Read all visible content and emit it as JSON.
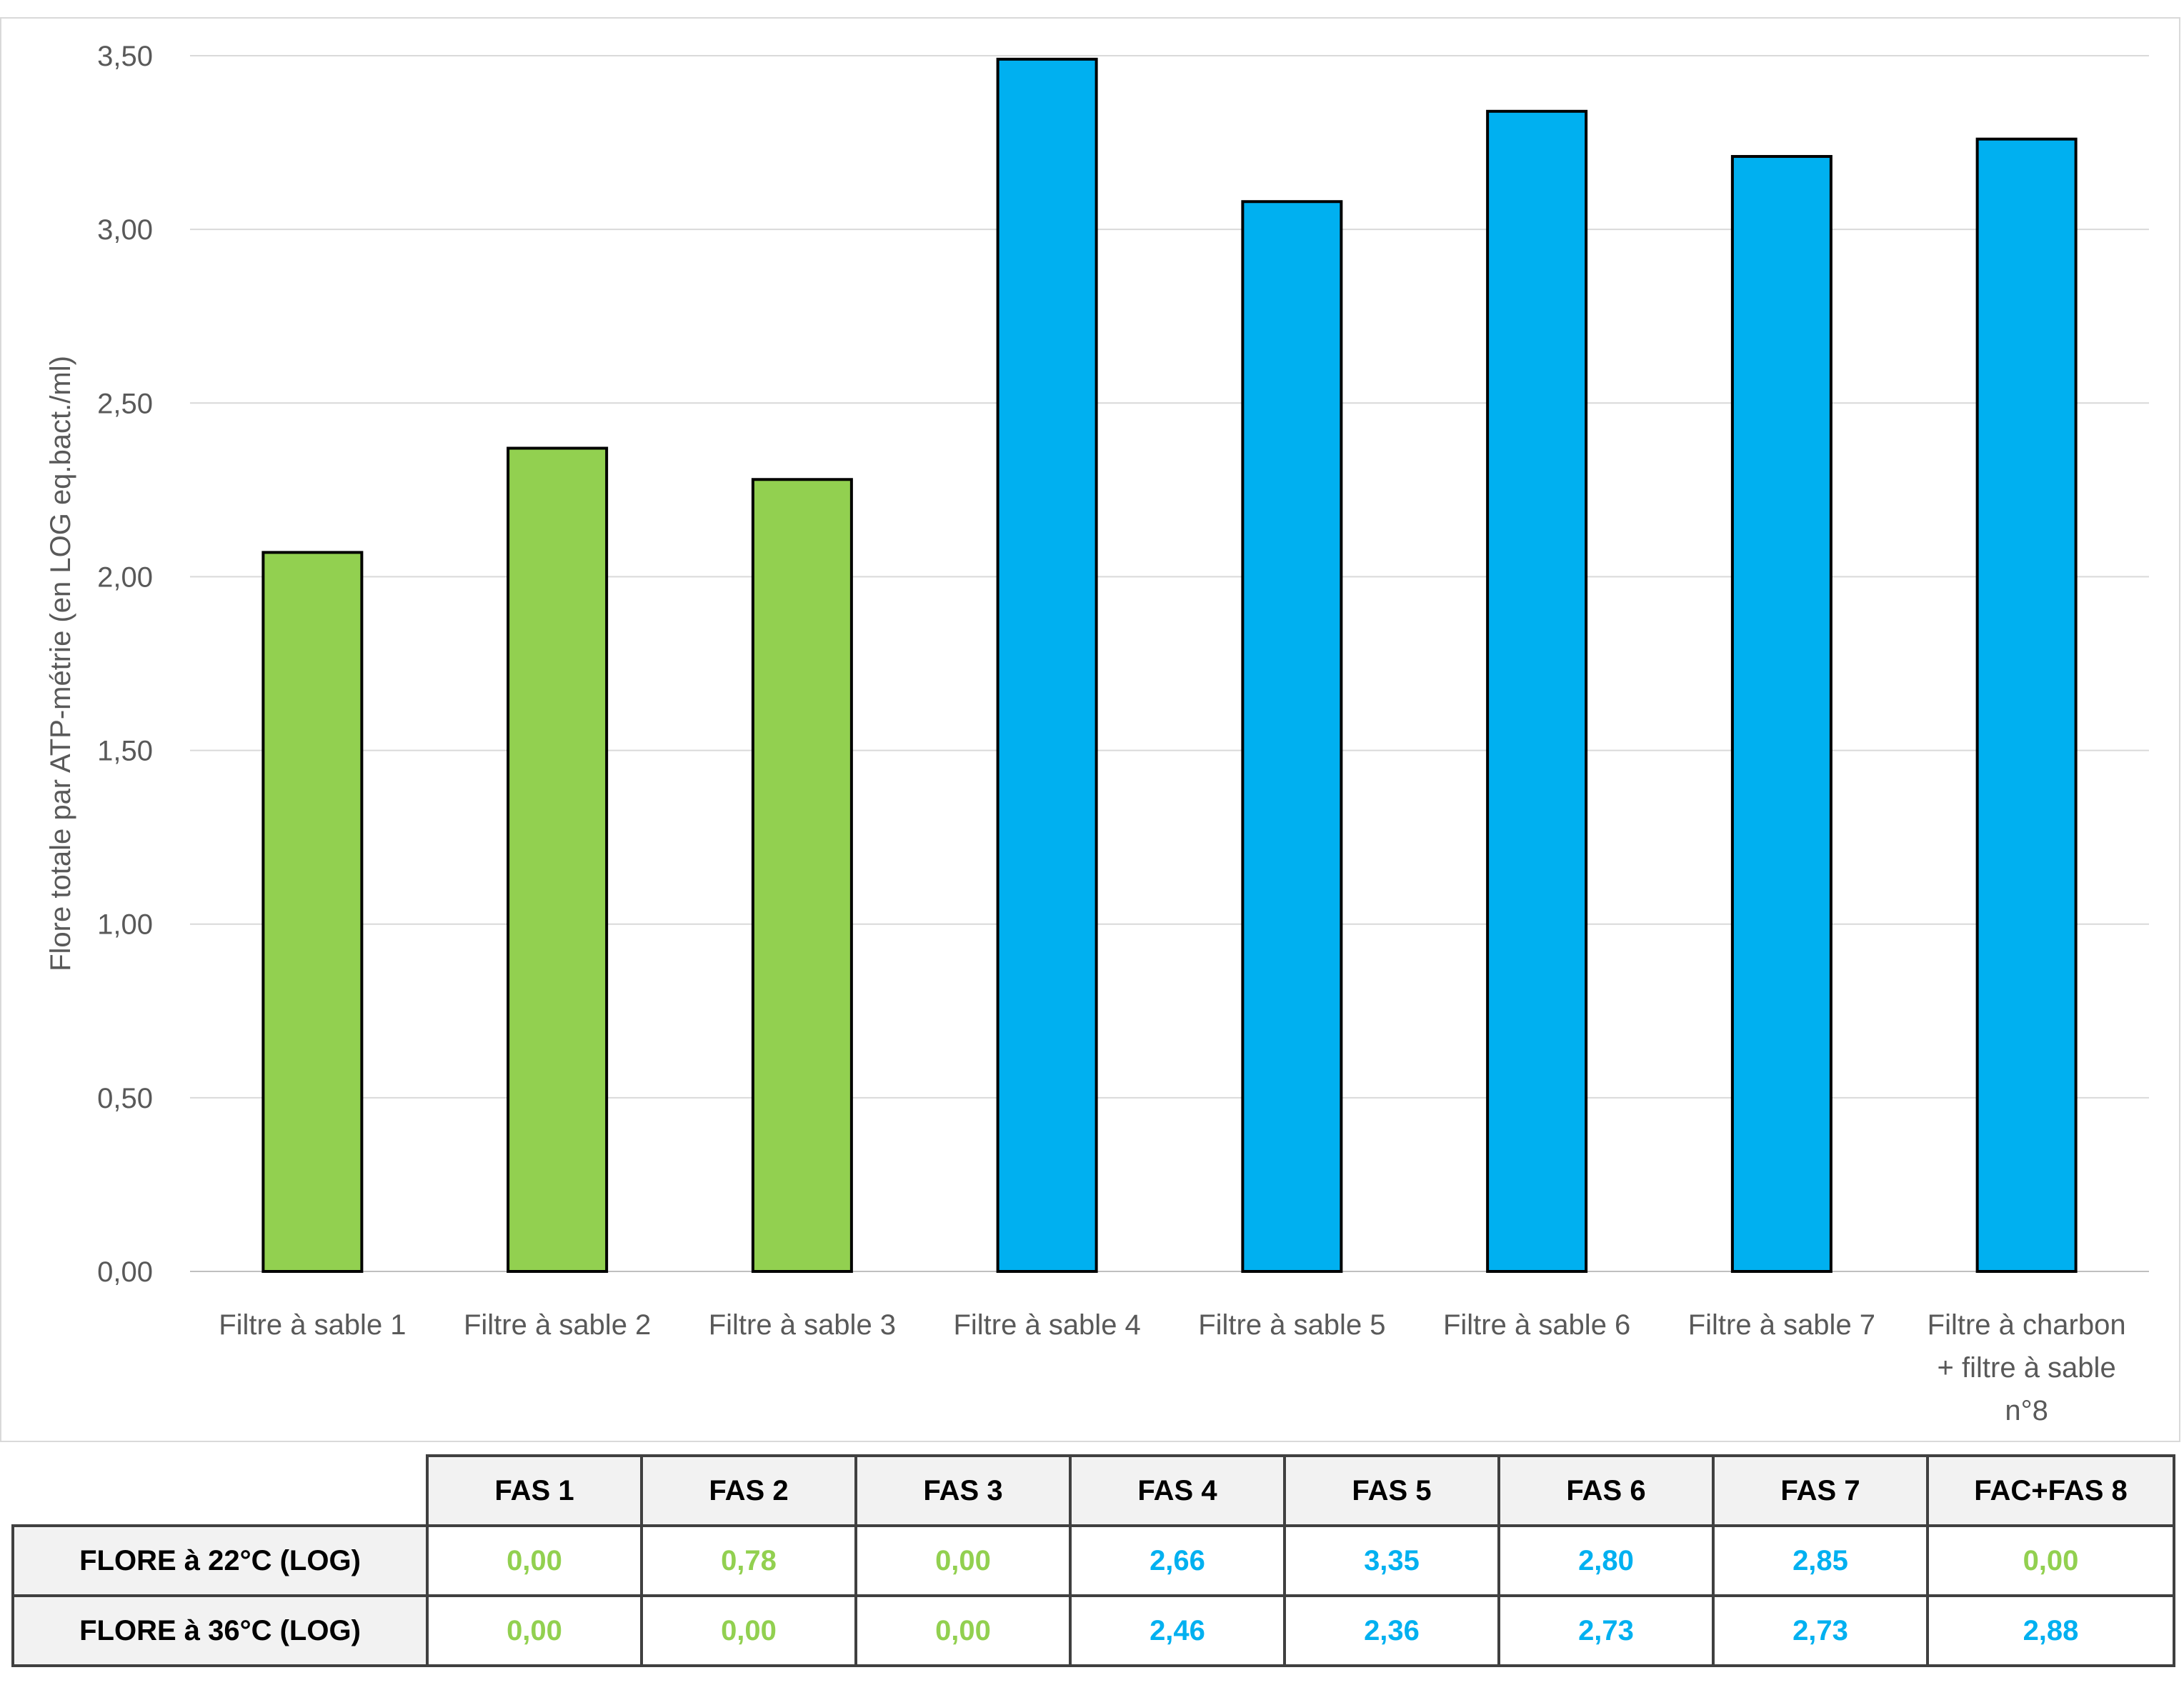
{
  "chart_data": {
    "type": "bar",
    "categories": [
      "Filtre à sable 1",
      "Filtre à sable 2",
      "Filtre à sable 3",
      "Filtre à sable 4",
      "Filtre à sable 5",
      "Filtre à sable 6",
      "Filtre à sable 7",
      "Filtre à charbon + filtre à sable n°8"
    ],
    "category_lines": [
      [
        "Filtre à sable 1"
      ],
      [
        "Filtre à sable 2"
      ],
      [
        "Filtre à sable 3"
      ],
      [
        "Filtre à sable 4"
      ],
      [
        "Filtre à sable 5"
      ],
      [
        "Filtre à sable 6"
      ],
      [
        "Filtre à sable 7"
      ],
      [
        "Filtre à charbon",
        "+ filtre à sable",
        "n°8"
      ]
    ],
    "values": [
      2.07,
      2.37,
      2.28,
      3.49,
      3.08,
      3.34,
      3.21,
      3.26
    ],
    "bar_colors": [
      "#92d050",
      "#92d050",
      "#92d050",
      "#00b0f0",
      "#00b0f0",
      "#00b0f0",
      "#00b0f0",
      "#00b0f0"
    ],
    "ylabel": "Flore totale par ATP-métrie (en LOG eq.bact./ml)",
    "ylim": [
      0,
      3.5
    ],
    "yticks": [
      "0,00",
      "0,50",
      "1,00",
      "1,50",
      "2,00",
      "2,50",
      "3,00",
      "3,50"
    ],
    "grid": true
  },
  "table": {
    "headers": [
      "FAS 1",
      "FAS 2",
      "FAS 3",
      "FAS 4",
      "FAS 5",
      "FAS 6",
      "FAS 7",
      "FAC+FAS 8"
    ],
    "rows": [
      {
        "label": "FLORE à 22°C (LOG)",
        "values": [
          "0,00",
          "0,78",
          "0,00",
          "2,66",
          "3,35",
          "2,80",
          "2,85",
          "0,00"
        ]
      },
      {
        "label": "FLORE à 36°C (LOG)",
        "values": [
          "0,00",
          "0,00",
          "0,00",
          "2,46",
          "2,36",
          "2,73",
          "2,73",
          "2,88"
        ]
      }
    ],
    "value_colors": [
      "#92d050",
      "#92d050",
      "#92d050",
      "#00b0f0",
      "#00b0f0",
      "#00b0f0",
      "#00b0f0",
      "#92d050"
    ],
    "value_colors_row2": [
      "#92d050",
      "#92d050",
      "#92d050",
      "#00b0f0",
      "#00b0f0",
      "#00b0f0",
      "#00b0f0",
      "#00b0f0"
    ]
  }
}
